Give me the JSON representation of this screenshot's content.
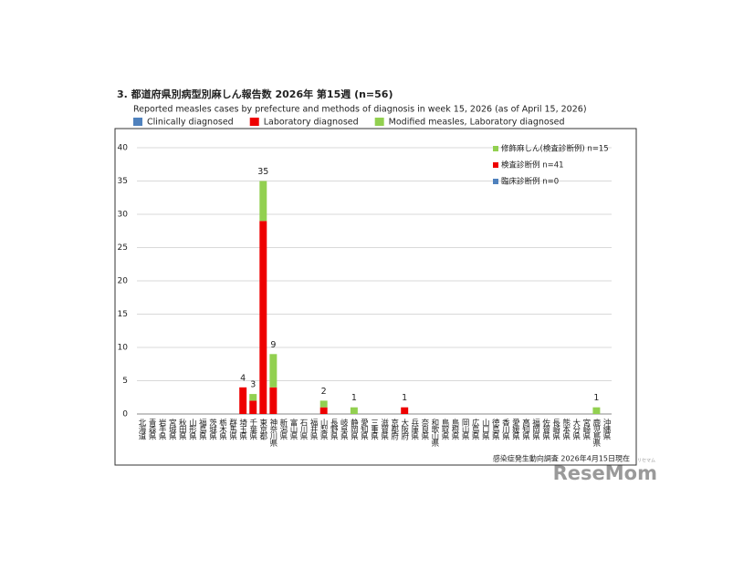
{
  "chart_data": {
    "type": "stacked_bar",
    "title": "3. 都道府県別病型別麻しん報告数  2026年 第15週 (n=56)",
    "subtitle": "Reported measles cases by prefecture and methods of diagnosis in week 15, 2026 (as of April 15, 2026)",
    "note": "感染症発生動向調査 2026年4月15日現在",
    "watermark": "ReseMom",
    "watermark_small": "リセマム",
    "categories": [
      "北海道",
      "青森県",
      "岩手県",
      "宮城県",
      "秋田県",
      "山形県",
      "福島県",
      "茨城県",
      "栃木県",
      "群馬県",
      "埼玉県",
      "千葉県",
      "東京都",
      "神奈川県",
      "新潟県",
      "富山県",
      "石川県",
      "福井県",
      "山梨県",
      "長野県",
      "岐阜県",
      "静岡県",
      "愛知県",
      "三重県",
      "滋賀県",
      "京都府",
      "大阪府",
      "兵庫県",
      "奈良県",
      "和歌山県",
      "鳥取県",
      "島根県",
      "岡山県",
      "広島県",
      "山口県",
      "徳島県",
      "香川県",
      "愛媛県",
      "高知県",
      "福岡県",
      "佐賀県",
      "長崎県",
      "熊本県",
      "大分県",
      "宮崎県",
      "鹿児島県",
      "沖縄県"
    ],
    "series": [
      {
        "name": "Clinically diagnosed",
        "name_ja": "臨床診断例 n=0",
        "color": "#4f81bd",
        "values": [
          0,
          0,
          0,
          0,
          0,
          0,
          0,
          0,
          0,
          0,
          0,
          0,
          0,
          0,
          0,
          0,
          0,
          0,
          0,
          0,
          0,
          0,
          0,
          0,
          0,
          0,
          0,
          0,
          0,
          0,
          0,
          0,
          0,
          0,
          0,
          0,
          0,
          0,
          0,
          0,
          0,
          0,
          0,
          0,
          0,
          0,
          0
        ]
      },
      {
        "name": "Laboratory diagnosed",
        "name_ja": "検査診断例 n=41",
        "color": "#ee0000",
        "values": [
          0,
          0,
          0,
          0,
          0,
          0,
          0,
          0,
          0,
          0,
          4,
          2,
          29,
          4,
          0,
          0,
          0,
          0,
          1,
          0,
          0,
          0,
          0,
          0,
          0,
          0,
          1,
          0,
          0,
          0,
          0,
          0,
          0,
          0,
          0,
          0,
          0,
          0,
          0,
          0,
          0,
          0,
          0,
          0,
          0,
          0,
          0
        ]
      },
      {
        "name": "Modified measles, Laboratory diagnosed",
        "name_ja": "修飾麻しん(検査診断例) n=15",
        "color": "#92d050",
        "values": [
          0,
          0,
          0,
          0,
          0,
          0,
          0,
          0,
          0,
          0,
          0,
          1,
          6,
          5,
          0,
          0,
          0,
          0,
          1,
          0,
          0,
          1,
          0,
          0,
          0,
          0,
          0,
          0,
          0,
          0,
          0,
          0,
          0,
          0,
          0,
          0,
          0,
          0,
          0,
          0,
          0,
          0,
          0,
          0,
          0,
          1,
          0
        ]
      }
    ],
    "totals": [
      null,
      null,
      null,
      null,
      null,
      null,
      null,
      null,
      null,
      null,
      4,
      3,
      35,
      9,
      null,
      null,
      null,
      null,
      2,
      null,
      null,
      1,
      null,
      null,
      null,
      null,
      1,
      null,
      null,
      null,
      null,
      null,
      null,
      null,
      null,
      null,
      null,
      null,
      null,
      null,
      null,
      null,
      null,
      null,
      null,
      1,
      null
    ],
    "ylim": [
      0,
      40
    ],
    "yticks": [
      0,
      5,
      10,
      15,
      20,
      25,
      30,
      35,
      40
    ],
    "grid": true
  }
}
